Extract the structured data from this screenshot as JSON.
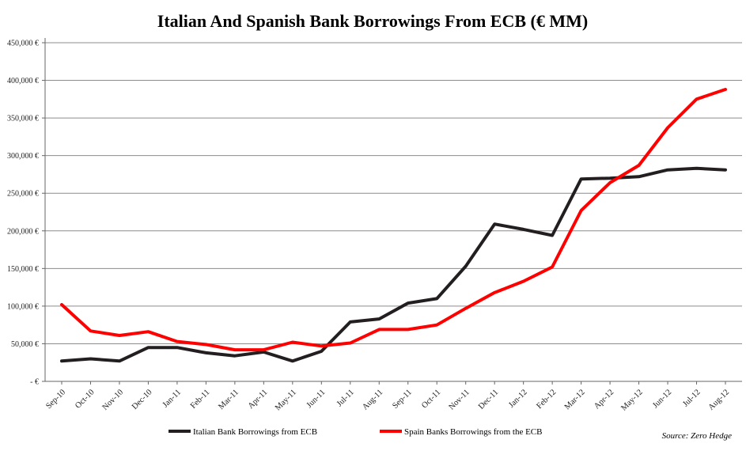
{
  "chart_data": {
    "type": "line",
    "title": "Italian And Spanish Bank Borrowings From ECB (€ MM)",
    "categories": [
      "Sep-10",
      "Oct-10",
      "Nov-10",
      "Dec-10",
      "Jan-11",
      "Feb-11",
      "Mar-11",
      "Apr-11",
      "May-11",
      "Jun-11",
      "Jul-11",
      "Aug-11",
      "Sep-11",
      "Oct-11",
      "Nov-11",
      "Dec-11",
      "Jan-12",
      "Feb-12",
      "Mar-12",
      "Apr-12",
      "May-12",
      "Jun-12",
      "Jul-12",
      "Aug-12"
    ],
    "yticks": [
      "- €",
      "50,000 €",
      "100,000 €",
      "150,000 €",
      "200,000 €",
      "250,000 €",
      "300,000 €",
      "350,000 €",
      "400,000 €",
      "450,000 €"
    ],
    "ylim": [
      0,
      450000
    ],
    "grid": true,
    "legend_position": "bottom",
    "series": [
      {
        "name": "Italian Bank Borrowings from ECB",
        "color": "#231f20",
        "values": [
          27000,
          30000,
          27000,
          45000,
          45000,
          38000,
          34000,
          39000,
          27000,
          40000,
          79000,
          83000,
          104000,
          110000,
          153000,
          209000,
          202000,
          194000,
          269000,
          270000,
          272000,
          281000,
          283000,
          281000
        ]
      },
      {
        "name": "Spain Banks Borrowings from the ECB",
        "color": "#ff0000",
        "values": [
          102000,
          67000,
          61000,
          66000,
          53000,
          49000,
          42000,
          42000,
          52000,
          47000,
          51000,
          69000,
          69000,
          75000,
          97000,
          118000,
          133000,
          152000,
          227000,
          264000,
          287000,
          337000,
          375000,
          388000
        ]
      }
    ],
    "source": "Source: Zero Hedge"
  }
}
